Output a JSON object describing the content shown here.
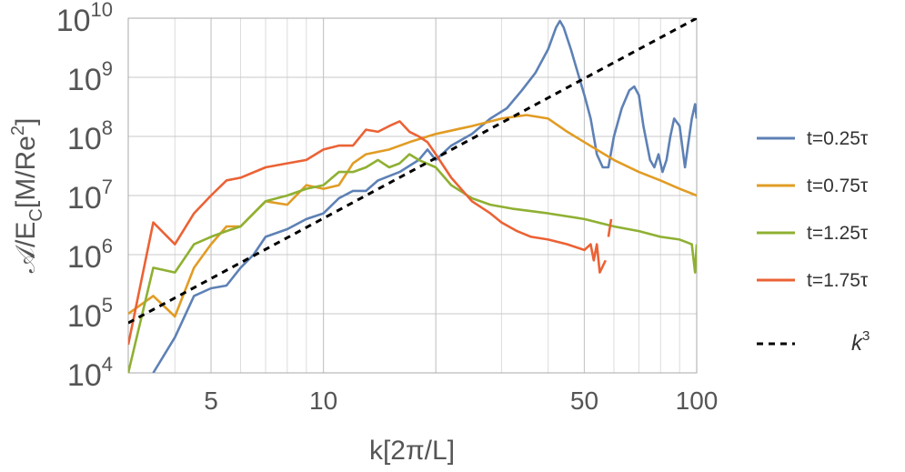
{
  "chart_data": {
    "type": "line",
    "xscale": "log",
    "yscale": "log",
    "xlim": [
      3,
      100
    ],
    "ylim": [
      10000,
      10000000000
    ],
    "xlabel": "k[2π/L]",
    "ylabel": "𝒜/E_C[M/Re²]",
    "ylabel_parts": {
      "main": "𝒜/E",
      "sub": "C",
      "after": "[M/Re",
      "sup": "2",
      "close": "]"
    },
    "x_ticks": [
      {
        "value": 5,
        "label": "5"
      },
      {
        "value": 10,
        "label": "10"
      },
      {
        "value": 50,
        "label": "50"
      },
      {
        "value": 100,
        "label": "100"
      }
    ],
    "y_ticks": [
      {
        "value": 10000,
        "base": "10",
        "exp": "4"
      },
      {
        "value": 100000,
        "base": "10",
        "exp": "5"
      },
      {
        "value": 1000000,
        "base": "10",
        "exp": "6"
      },
      {
        "value": 10000000,
        "base": "10",
        "exp": "7"
      },
      {
        "value": 100000000,
        "base": "10",
        "exp": "8"
      },
      {
        "value": 1000000000,
        "base": "10",
        "exp": "9"
      },
      {
        "value": 10000000000,
        "base": "10",
        "exp": "10"
      }
    ],
    "grid": true,
    "legend_position": "right",
    "series": [
      {
        "name": "t=0.25τ",
        "color": "#5E81B5",
        "dash": false,
        "points": [
          [
            3.5,
            10000.0
          ],
          [
            4,
            40000.0
          ],
          [
            4.5,
            200000.0
          ],
          [
            5,
            270000.0
          ],
          [
            5.5,
            300000.0
          ],
          [
            6,
            600000.0
          ],
          [
            6.5,
            1000000.0
          ],
          [
            7,
            2000000.0
          ],
          [
            8,
            2700000.0
          ],
          [
            9,
            4000000.0
          ],
          [
            10,
            5000000.0
          ],
          [
            11,
            9000000.0
          ],
          [
            12,
            12000000.0
          ],
          [
            13,
            12000000.0
          ],
          [
            14,
            18000000.0
          ],
          [
            16,
            25000000.0
          ],
          [
            18,
            40000000.0
          ],
          [
            19,
            60000000.0
          ],
          [
            20,
            40000000.0
          ],
          [
            22,
            70000000.0
          ],
          [
            25,
            110000000.0
          ],
          [
            28,
            200000000.0
          ],
          [
            31,
            300000000.0
          ],
          [
            34,
            600000000.0
          ],
          [
            37,
            1200000000.0
          ],
          [
            40,
            3000000000.0
          ],
          [
            42,
            7000000000.0
          ],
          [
            43,
            9000000000.0
          ],
          [
            44,
            7000000000.0
          ],
          [
            46,
            3000000000.0
          ],
          [
            48,
            1200000000.0
          ],
          [
            50,
            500000000.0
          ],
          [
            52,
            200000000.0
          ],
          [
            54,
            50000000.0
          ],
          [
            56,
            30000000.0
          ],
          [
            58,
            30000000.0
          ],
          [
            60,
            100000000.0
          ],
          [
            63,
            300000000.0
          ],
          [
            66,
            600000000.0
          ],
          [
            68,
            700000000.0
          ],
          [
            70,
            500000000.0
          ],
          [
            72,
            150000000.0
          ],
          [
            75,
            40000000.0
          ],
          [
            77,
            30000000.0
          ],
          [
            79,
            50000000.0
          ],
          [
            81,
            25000000.0
          ],
          [
            83,
            40000000.0
          ],
          [
            85,
            100000000.0
          ],
          [
            87,
            200000000.0
          ],
          [
            90,
            150000000.0
          ],
          [
            93,
            30000000.0
          ],
          [
            95,
            80000000.0
          ],
          [
            97,
            200000000.0
          ],
          [
            99,
            350000000.0
          ],
          [
            100,
            200000000.0
          ]
        ]
      },
      {
        "name": "t=0.75τ",
        "color": "#E19C24",
        "dash": false,
        "points": [
          [
            3,
            100000.0
          ],
          [
            3.5,
            200000.0
          ],
          [
            4,
            90000.0
          ],
          [
            4.5,
            600000.0
          ],
          [
            5,
            1500000.0
          ],
          [
            5.5,
            3000000.0
          ],
          [
            6,
            3000000.0
          ],
          [
            7,
            8000000.0
          ],
          [
            8,
            7000000.0
          ],
          [
            9,
            15000000.0
          ],
          [
            10,
            13000000.0
          ],
          [
            11,
            15000000.0
          ],
          [
            12,
            35000000.0
          ],
          [
            13,
            50000000.0
          ],
          [
            15,
            60000000.0
          ],
          [
            17,
            80000000.0
          ],
          [
            20,
            110000000.0
          ],
          [
            25,
            150000000.0
          ],
          [
            30,
            200000000.0
          ],
          [
            35,
            230000000.0
          ],
          [
            40,
            200000000.0
          ],
          [
            45,
            120000000.0
          ],
          [
            50,
            80000000.0
          ],
          [
            60,
            40000000.0
          ],
          [
            70,
            25000000.0
          ],
          [
            80,
            18000000.0
          ],
          [
            90,
            13000000.0
          ],
          [
            100,
            10000000.0
          ]
        ]
      },
      {
        "name": "t=1.25τ",
        "color": "#8FB032",
        "dash": false,
        "points": [
          [
            3,
            10000.0
          ],
          [
            3.5,
            600000.0
          ],
          [
            4,
            500000.0
          ],
          [
            4.5,
            1500000.0
          ],
          [
            5,
            2000000.0
          ],
          [
            5.5,
            2500000.0
          ],
          [
            6,
            3000000.0
          ],
          [
            6.5,
            5000000.0
          ],
          [
            7,
            8000000.0
          ],
          [
            8,
            10000000.0
          ],
          [
            9,
            13000000.0
          ],
          [
            10,
            15000000.0
          ],
          [
            11,
            25000000.0
          ],
          [
            12,
            25000000.0
          ],
          [
            13,
            30000000.0
          ],
          [
            14,
            40000000.0
          ],
          [
            15,
            30000000.0
          ],
          [
            16,
            35000000.0
          ],
          [
            17,
            50000000.0
          ],
          [
            18,
            40000000.0
          ],
          [
            20,
            30000000.0
          ],
          [
            22,
            15000000.0
          ],
          [
            25,
            9000000.0
          ],
          [
            28,
            7000000.0
          ],
          [
            32,
            6000000.0
          ],
          [
            40,
            5000000.0
          ],
          [
            50,
            4000000.0
          ],
          [
            60,
            3000000.0
          ],
          [
            70,
            2500000.0
          ],
          [
            80,
            2000000.0
          ],
          [
            90,
            1800000.0
          ],
          [
            97,
            1500000.0
          ],
          [
            99,
            500000.0
          ],
          [
            100,
            1500000.0
          ]
        ]
      },
      {
        "name": "t=1.75τ",
        "color": "#EB6235",
        "dash": false,
        "points": [
          [
            3,
            30000.0
          ],
          [
            3.5,
            3500000.0
          ],
          [
            4,
            1500000.0
          ],
          [
            4.5,
            5000000.0
          ],
          [
            5,
            10000000.0
          ],
          [
            5.5,
            18000000.0
          ],
          [
            6,
            20000000.0
          ],
          [
            7,
            30000000.0
          ],
          [
            8,
            35000000.0
          ],
          [
            9,
            40000000.0
          ],
          [
            10,
            60000000.0
          ],
          [
            11,
            70000000.0
          ],
          [
            12,
            70000000.0
          ],
          [
            13,
            130000000.0
          ],
          [
            14,
            120000000.0
          ],
          [
            15,
            150000000.0
          ],
          [
            16,
            180000000.0
          ],
          [
            17,
            120000000.0
          ],
          [
            18,
            100000000.0
          ],
          [
            19,
            80000000.0
          ],
          [
            20,
            50000000.0
          ],
          [
            22,
            20000000.0
          ],
          [
            25,
            8000000.0
          ],
          [
            28,
            5000000.0
          ],
          [
            30,
            3500000.0
          ],
          [
            33,
            2500000.0
          ],
          [
            36,
            2000000.0
          ],
          [
            40,
            1800000.0
          ],
          [
            45,
            1500000.0
          ],
          [
            50,
            1200000.0
          ],
          [
            52,
            1500000.0
          ],
          [
            53,
            800000.0
          ],
          [
            54,
            1500000.0
          ],
          [
            55,
            500000.0
          ],
          [
            57,
            800000.0
          ]
        ]
      },
      {
        "name": "t=1.75τ",
        "color": "#EB6235",
        "dash": false,
        "legend": false,
        "points": [
          [
            58,
            2000000.0
          ],
          [
            59,
            4000000.0
          ]
        ]
      },
      {
        "name": "k³",
        "color": "#000000",
        "dash": true,
        "legend_base": "k",
        "legend_exp": "3",
        "points": [
          [
            3,
            70000.0
          ],
          [
            100,
            10000000000.0
          ]
        ]
      }
    ]
  }
}
